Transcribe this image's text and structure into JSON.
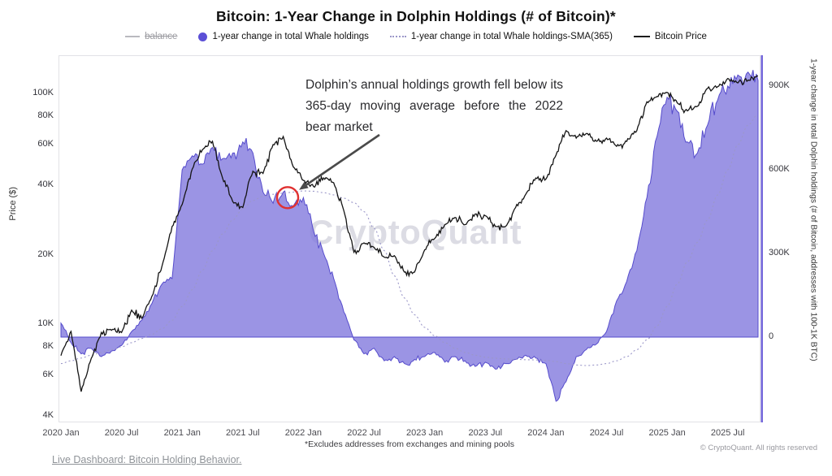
{
  "header": {
    "title": "Bitcoin: 1-Year Change in Dolphin Holdings (# of Bitcoin)*"
  },
  "legend": {
    "balance": "balance",
    "whale": "1-year change in total Whale holdings",
    "sma": "1-year change in total Whale holdings-SMA(365)",
    "price": "Bitcoin Price"
  },
  "annotation": {
    "text": "Dolphin’s annual holdings growth fell below its 365-day moving average before the 2022 bear market",
    "target_time": 2021.87,
    "target_value_k": 500
  },
  "axes": {
    "left_label": "Price ($)",
    "right_label": "1-year change in total Dolphin holdings (# of Bitcoin, addresses with 100-1K BTC)",
    "left_ticks": [
      {
        "label": "4K",
        "v": 4000
      },
      {
        "label": "6K",
        "v": 6000
      },
      {
        "label": "8K",
        "v": 8000
      },
      {
        "label": "10K",
        "v": 10000
      },
      {
        "label": "20K",
        "v": 20000
      },
      {
        "label": "40K",
        "v": 40000
      },
      {
        "label": "60K",
        "v": 60000
      },
      {
        "label": "80K",
        "v": 80000
      },
      {
        "label": "100K",
        "v": 100000
      }
    ],
    "right_ticks": [
      {
        "label": "0",
        "k": 0
      },
      {
        "label": "300K",
        "k": 300
      },
      {
        "label": "600K",
        "k": 600
      },
      {
        "label": "900K",
        "k": 900
      }
    ],
    "x_ticks": [
      {
        "label": "2020 Jan",
        "t": 2020.0
      },
      {
        "label": "2020 Jul",
        "t": 2020.5
      },
      {
        "label": "2021 Jan",
        "t": 2021.0
      },
      {
        "label": "2021 Jul",
        "t": 2021.5
      },
      {
        "label": "2022 Jan",
        "t": 2022.0
      },
      {
        "label": "2022 Jul",
        "t": 2022.5
      },
      {
        "label": "2023 Jan",
        "t": 2023.0
      },
      {
        "label": "2023 Jul",
        "t": 2023.5
      },
      {
        "label": "2024 Jan",
        "t": 2024.0
      },
      {
        "label": "2024 Jul",
        "t": 2024.5
      },
      {
        "label": "2025 Jan",
        "t": 2025.0
      },
      {
        "label": "2025 Jul",
        "t": 2025.5
      }
    ]
  },
  "footer": {
    "footnote": "*Excludes addresses from exchanges and mining pools",
    "link": "Live Dashboard: Bitcoin Holding Behavior.",
    "copyright": "© CryptoQuant. All rights reserved"
  },
  "watermark": "CryptoQuant",
  "colors": {
    "purple_fill": "#8279dd",
    "purple_stroke": "#564ccc",
    "price_line": "#141414",
    "sma_dotted": "#9b97c9",
    "right_axis_line": "#6c5fd8",
    "annotation_red": "#e03131",
    "arrow": "#4a4a4a"
  },
  "chart_data": {
    "type": "area",
    "x_start": 2020.0,
    "x_step_months": 1,
    "left_axis": {
      "scale": "log",
      "unit": "USD",
      "range": [
        4000,
        120000
      ]
    },
    "right_axis": {
      "scale": "linear",
      "unit": "1000 BTC",
      "range_k": [
        -300,
        950
      ]
    },
    "series": [
      {
        "name": "1-year change in total Dolphin holdings",
        "axis": "right",
        "unit": "1000 BTC",
        "style": "area",
        "values": [
          50,
          -20,
          -60,
          -40,
          -70,
          -50,
          -30,
          20,
          60,
          120,
          190,
          210,
          600,
          650,
          620,
          680,
          640,
          660,
          700,
          660,
          520,
          480,
          520,
          470,
          500,
          380,
          300,
          210,
          90,
          -10,
          -60,
          -40,
          -85,
          -70,
          -95,
          -80,
          -70,
          -55,
          -90,
          -70,
          -85,
          -105,
          -90,
          -115,
          -95,
          -80,
          -65,
          -75,
          -95,
          -230,
          -160,
          -70,
          -45,
          -25,
          20,
          130,
          200,
          310,
          500,
          720,
          860,
          810,
          700,
          660,
          760,
          850,
          900,
          940,
          950,
          920
        ]
      },
      {
        "name": "1-year change in total Dolphin holdings-SMA(365)",
        "axis": "right",
        "unit": "1000 BTC",
        "style": "dotted-line",
        "values": [
          -95,
          -85,
          -75,
          -65,
          -55,
          -45,
          -35,
          -20,
          -5,
          10,
          30,
          60,
          110,
          170,
          240,
          310,
          370,
          420,
          460,
          490,
          505,
          512,
          516,
          520,
          524,
          523,
          518,
          510,
          498,
          482,
          450,
          390,
          310,
          220,
          140,
          80,
          35,
          5,
          -20,
          -40,
          -55,
          -65,
          -72,
          -76,
          -78,
          -80,
          -81,
          -82,
          -83,
          -88,
          -95,
          -100,
          -102,
          -100,
          -95,
          -85,
          -70,
          -45,
          -10,
          40,
          110,
          190,
          270,
          340,
          420,
          510,
          600,
          690,
          760,
          800
        ]
      },
      {
        "name": "Bitcoin Price",
        "axis": "left",
        "unit": "USD",
        "style": "line",
        "values": [
          7300,
          9300,
          5100,
          7100,
          9200,
          9400,
          9200,
          11500,
          10600,
          13200,
          17800,
          26500,
          33000,
          47000,
          57000,
          62000,
          43000,
          34000,
          32000,
          46000,
          45000,
          60000,
          65000,
          48000,
          42000,
          39500,
          43000,
          41000,
          31000,
          20500,
          22500,
          21500,
          19500,
          19800,
          16800,
          16800,
          21000,
          23500,
          27000,
          29000,
          27000,
          30000,
          29500,
          26500,
          26500,
          32000,
          36500,
          43000,
          42500,
          54000,
          69000,
          64000,
          67000,
          62000,
          64000,
          59000,
          62000,
          69000,
          92000,
          97000,
          101000,
          91000,
          84000,
          88000,
          105000,
          107000,
          116000,
          111000,
          114000,
          119000
        ]
      }
    ]
  }
}
